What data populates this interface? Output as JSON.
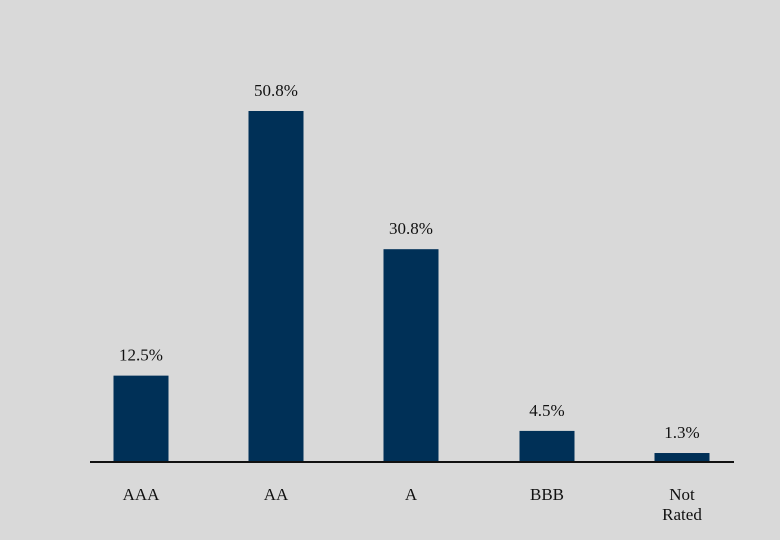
{
  "chart_data": {
    "type": "bar",
    "categories": [
      "AAA",
      "AA",
      "A",
      "BBB",
      "Not Rated"
    ],
    "values": [
      12.5,
      50.8,
      30.8,
      4.5,
      1.3
    ],
    "value_labels": [
      "12.5%",
      "50.8%",
      "30.8%",
      "4.5%",
      "1.3%"
    ],
    "title": "",
    "xlabel": "",
    "ylabel": "",
    "ylim": [
      0,
      50.8
    ],
    "grid": false,
    "legend": "none",
    "colors": {
      "bar": "#003057",
      "axis": "#111111",
      "background": "#d9d9d9"
    }
  }
}
